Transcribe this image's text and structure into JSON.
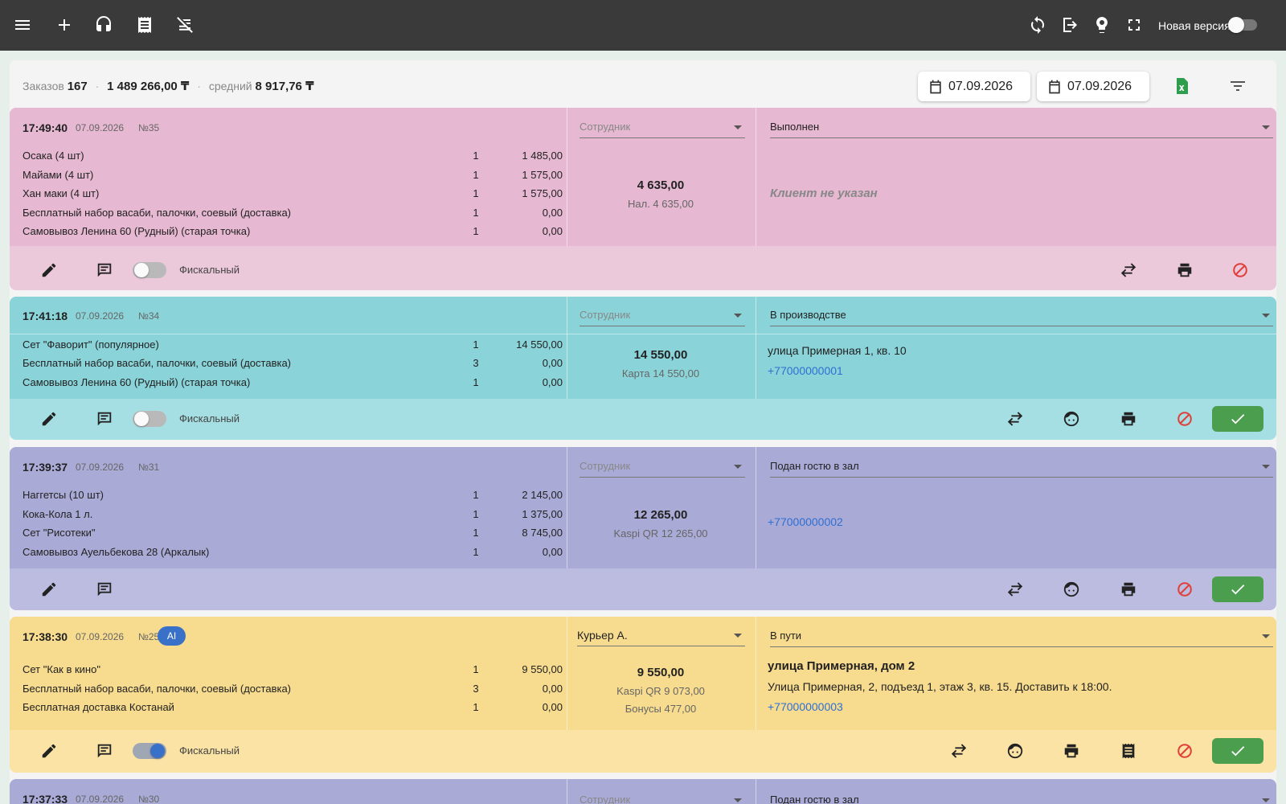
{
  "topbar": {
    "icons": [
      "menu-icon",
      "plus-icon",
      "headset-icon",
      "receipt-icon",
      "no-delivery-icon",
      "sync-icon",
      "logout-icon",
      "lightbulb-icon",
      "fullscreen-icon"
    ],
    "new_version_label": "Новая версия"
  },
  "summary": {
    "orders_label": "Заказов",
    "orders_count": "167",
    "total_sum": "1 489 266,00 ₸",
    "avg_label": "средний",
    "avg_sum": "8 917,76 ₸"
  },
  "filters": {
    "date_from": "07.09.2026",
    "date_to": "07.09.2026"
  },
  "colors": {
    "order1_top": "#e6b8d1",
    "order1_actions": "#ecc8db",
    "order2_top": "#8ad4d9",
    "order2_actions": "#a5dfe3",
    "order3_top": "#a9aad6",
    "order3_actions": "#bbbce0",
    "order4_top": "#f7db8e",
    "order4_actions": "#fae3a4",
    "order5_top": "#a9aad6"
  },
  "employee_placeholder": "Сотрудник",
  "fiscal_label": "Фискальный",
  "orders": [
    {
      "time": "17:49:40",
      "date": "07.09.2026",
      "number": "№35",
      "employee": "",
      "status": "Выполнен",
      "items": [
        {
          "name": "Осака (4 шт)",
          "qty": "1",
          "price": "1 485,00"
        },
        {
          "name": "Майами (4 шт)",
          "qty": "1",
          "price": "1 575,00"
        },
        {
          "name": "Хан маки (4 шт)",
          "qty": "1",
          "price": "1 575,00"
        },
        {
          "name": "Бесплатный набор васаби, палочки, соевый (доставка)",
          "qty": "1",
          "price": "0,00"
        },
        {
          "name": "Самовывоз Ленина 60 (Рудный) (старая точка)",
          "qty": "1",
          "price": "0,00"
        }
      ],
      "total": "4 635,00",
      "payments": [
        "Нал. 4 635,00"
      ],
      "client": "Клиент не указан"
    },
    {
      "time": "17:41:18",
      "date": "07.09.2026",
      "number": "№34",
      "employee": "",
      "status": "В производстве",
      "items": [
        {
          "name": "Сет \"Фаворит\" (популярное)",
          "qty": "1",
          "price": "14 550,00"
        },
        {
          "name": "Бесплатный набор васаби, палочки, соевый (доставка)",
          "qty": "3",
          "price": "0,00"
        },
        {
          "name": "Самовывоз Ленина 60 (Рудный) (старая точка)",
          "qty": "1",
          "price": "0,00"
        }
      ],
      "total": "14 550,00",
      "payments": [
        "Карта 14 550,00"
      ],
      "address": "улица Примерная 1, кв. 10",
      "phone": "+77000000001"
    },
    {
      "time": "17:39:37",
      "date": "07.09.2026",
      "number": "№31",
      "employee": "",
      "status": "Подан гостю в зал",
      "items": [
        {
          "name": "Наггетсы (10 шт)",
          "qty": "1",
          "price": "2 145,00"
        },
        {
          "name": "Кока-Кола 1 л.",
          "qty": "1",
          "price": "1 375,00"
        },
        {
          "name": "Сет \"Рисотеки\"",
          "qty": "1",
          "price": "8 745,00"
        },
        {
          "name": "Самовывоз Ауельбекова 28 (Аркалык)",
          "qty": "1",
          "price": "0,00"
        }
      ],
      "total": "12 265,00",
      "payments": [
        "Kaspi QR 12 265,00"
      ],
      "phone": "+77000000002"
    },
    {
      "time": "17:38:30",
      "date": "07.09.2026",
      "number": "№25",
      "badge": "AI",
      "employee": "Курьер А.",
      "status": "В пути",
      "items": [
        {
          "name": "Сет \"Как в кино\"",
          "qty": "1",
          "price": "9 550,00"
        },
        {
          "name": "Бесплатный набор васаби, палочки, соевый (доставка)",
          "qty": "3",
          "price": "0,00"
        },
        {
          "name": "Бесплатная доставка Костанай",
          "qty": "1",
          "price": "0,00"
        }
      ],
      "total": "9 550,00",
      "payments": [
        "Kaspi QR 9 073,00",
        "Бонусы 477,00"
      ],
      "address_title": "улица Примерная, дом 2",
      "address": "Улица Примерная, 2, подъезд 1, этаж 3, кв. 15. Доставить к 18:00.",
      "phone": "+77000000003"
    },
    {
      "time": "17:37:33",
      "date": "07.09.2026",
      "number": "№30",
      "employee": "",
      "status": "Подан гостю в зал"
    }
  ]
}
